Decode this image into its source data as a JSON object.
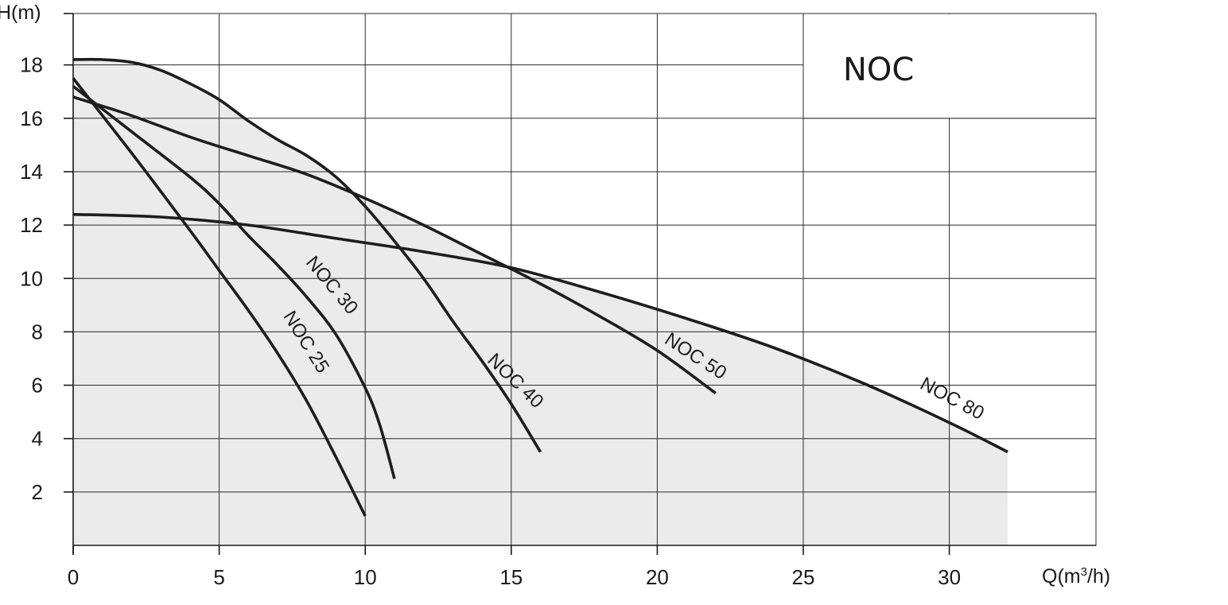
{
  "chart_data": {
    "type": "line",
    "title": "NOC",
    "xlabel_main": "Q(m",
    "xlabel_sup": "3",
    "xlabel_tail": "/h)",
    "ylabel": "H(m)",
    "xlim": [
      0,
      35
    ],
    "ylim": [
      0,
      20
    ],
    "x_ticks": [
      0,
      5,
      10,
      15,
      20,
      25,
      30
    ],
    "y_ticks": [
      2,
      4,
      6,
      8,
      10,
      12,
      14,
      16,
      18
    ],
    "grid": true,
    "envelope_fill": "#ebebeb",
    "series": [
      {
        "name": "NOC 25",
        "points": [
          [
            0,
            17.5
          ],
          [
            2,
            14.7
          ],
          [
            4,
            11.8
          ],
          [
            5,
            10.3
          ],
          [
            6,
            8.8
          ],
          [
            7,
            7.2
          ],
          [
            8,
            5.4
          ],
          [
            9,
            3.3
          ],
          [
            10,
            1.1
          ]
        ]
      },
      {
        "name": "NOC 30",
        "points": [
          [
            0,
            17.2
          ],
          [
            2,
            15.5
          ],
          [
            4,
            13.8
          ],
          [
            5,
            12.8
          ],
          [
            6,
            11.6
          ],
          [
            7,
            10.5
          ],
          [
            8,
            9.3
          ],
          [
            9,
            7.9
          ],
          [
            10,
            5.9
          ],
          [
            10.5,
            4.5
          ],
          [
            11,
            2.5
          ]
        ]
      },
      {
        "name": "NOC 40",
        "points": [
          [
            0,
            18.2
          ],
          [
            1,
            18.2
          ],
          [
            2,
            18.1
          ],
          [
            3,
            17.8
          ],
          [
            4,
            17.3
          ],
          [
            5,
            16.7
          ],
          [
            6,
            15.9
          ],
          [
            7,
            15.2
          ],
          [
            8,
            14.6
          ],
          [
            9,
            13.8
          ],
          [
            10,
            12.7
          ],
          [
            11,
            11.4
          ],
          [
            12,
            10.0
          ],
          [
            13,
            8.4
          ],
          [
            14,
            6.9
          ],
          [
            15,
            5.3
          ],
          [
            16,
            3.5
          ]
        ]
      },
      {
        "name": "NOC 50",
        "points": [
          [
            0,
            16.8
          ],
          [
            2,
            16.1
          ],
          [
            4,
            15.3
          ],
          [
            6,
            14.6
          ],
          [
            8,
            13.9
          ],
          [
            10,
            13.0
          ],
          [
            12,
            12.0
          ],
          [
            14,
            10.9
          ],
          [
            16,
            9.8
          ],
          [
            18,
            8.6
          ],
          [
            20,
            7.3
          ],
          [
            22,
            5.7
          ]
        ]
      },
      {
        "name": "NOC 80",
        "points": [
          [
            0,
            12.4
          ],
          [
            3,
            12.3
          ],
          [
            6,
            12.0
          ],
          [
            9,
            11.5
          ],
          [
            12,
            11.0
          ],
          [
            15,
            10.4
          ],
          [
            18,
            9.5
          ],
          [
            21,
            8.5
          ],
          [
            24,
            7.4
          ],
          [
            27,
            6.1
          ],
          [
            30,
            4.6
          ],
          [
            32,
            3.5
          ]
        ]
      }
    ]
  }
}
